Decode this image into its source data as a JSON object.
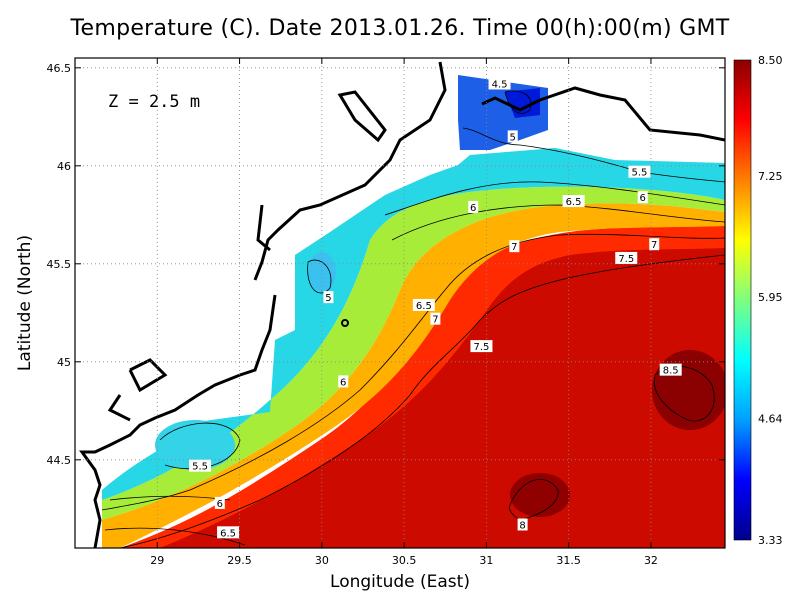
{
  "chart_data": {
    "type": "heatmap",
    "title": "Temperature (C). Date 2013.01.26. Time 00(h):00(m) GMT",
    "annotation": "Z = 2.5 m",
    "xlabel": "Longitude (East)",
    "ylabel": "Latitude (North)",
    "xlim": [
      28.5,
      32.45
    ],
    "ylim": [
      44.05,
      46.55
    ],
    "x_ticks": [
      29,
      29.5,
      30,
      30.5,
      31,
      31.5,
      32
    ],
    "x_tick_labels": [
      "29",
      "29.5",
      "30",
      "30.5",
      "31",
      "31.5",
      "32"
    ],
    "y_ticks": [
      44.5,
      45,
      45.5,
      46,
      46.5
    ],
    "y_tick_labels": [
      "44.5",
      "45",
      "45.5",
      "46",
      "46.5"
    ],
    "grid": true,
    "colorbar": {
      "min": 3.33,
      "max": 8.5,
      "ticks": [
        3.33,
        4.64,
        5.95,
        7.25,
        8.5
      ],
      "tick_labels": [
        "3.33",
        "4.64",
        "5.95",
        "7.25",
        "8.50"
      ],
      "colors": [
        "#00008b",
        "#0000ff",
        "#00a0ff",
        "#00ffff",
        "#7fff7f",
        "#ffff00",
        "#ff8000",
        "#ff0000",
        "#8b0000"
      ]
    },
    "contour_labels": [
      {
        "text": "4.5",
        "lon": 31.08,
        "lat": 46.42
      },
      {
        "text": "5",
        "lon": 31.16,
        "lat": 46.15
      },
      {
        "text": "5.5",
        "lon": 31.93,
        "lat": 45.97
      },
      {
        "text": "6",
        "lon": 31.95,
        "lat": 45.84
      },
      {
        "text": "6",
        "lon": 30.92,
        "lat": 45.79
      },
      {
        "text": "6.5",
        "lon": 31.53,
        "lat": 45.82
      },
      {
        "text": "7",
        "lon": 32.02,
        "lat": 45.6
      },
      {
        "text": "7",
        "lon": 31.17,
        "lat": 45.59
      },
      {
        "text": "7.5",
        "lon": 31.85,
        "lat": 45.53
      },
      {
        "text": "5",
        "lon": 30.04,
        "lat": 45.33
      },
      {
        "text": "6.5",
        "lon": 30.62,
        "lat": 45.29
      },
      {
        "text": "7",
        "lon": 30.69,
        "lat": 45.22
      },
      {
        "text": "7.5",
        "lon": 30.97,
        "lat": 45.08
      },
      {
        "text": "6",
        "lon": 30.13,
        "lat": 44.9
      },
      {
        "text": "8.5",
        "lon": 32.12,
        "lat": 44.96
      },
      {
        "text": "5.5",
        "lon": 29.26,
        "lat": 44.47
      },
      {
        "text": "6",
        "lon": 29.38,
        "lat": 44.28
      },
      {
        "text": "6.5",
        "lon": 29.43,
        "lat": 44.13
      },
      {
        "text": "8",
        "lon": 31.22,
        "lat": 44.17
      }
    ]
  }
}
